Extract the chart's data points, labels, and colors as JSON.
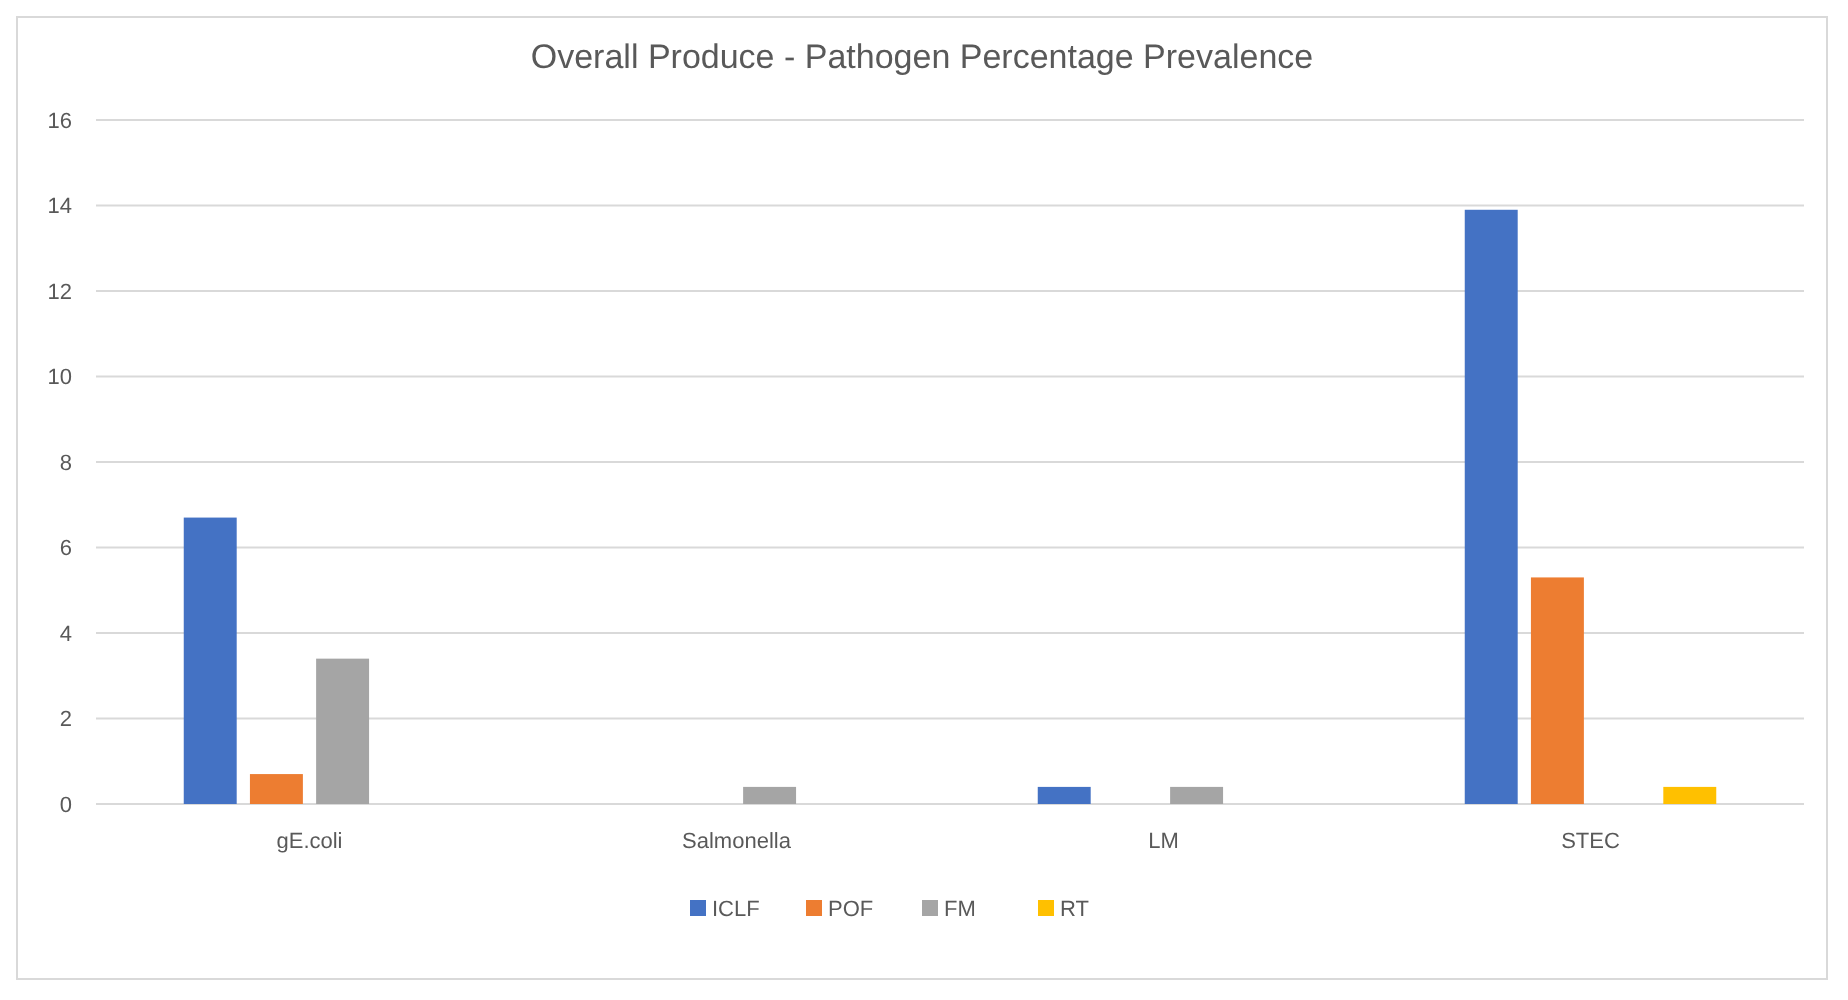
{
  "chart_data": {
    "type": "bar",
    "title": "Overall Produce - Pathogen Percentage Prevalence",
    "categories": [
      "gE.coli",
      "Salmonella",
      "LM",
      "STEC"
    ],
    "series": [
      {
        "name": "ICLF",
        "color": "#4472c4",
        "values": [
          6.7,
          null,
          0.4,
          13.9
        ]
      },
      {
        "name": "POF",
        "color": "#ed7d31",
        "values": [
          0.7,
          null,
          null,
          5.3
        ]
      },
      {
        "name": "FM",
        "color": "#a5a5a5",
        "values": [
          3.4,
          0.4,
          0.4,
          null
        ]
      },
      {
        "name": "RT",
        "color": "#ffc000",
        "values": [
          null,
          null,
          null,
          0.4
        ]
      }
    ],
    "ylim": [
      0,
      16
    ],
    "yticks": [
      0,
      2,
      4,
      6,
      8,
      10,
      12,
      14,
      16
    ],
    "grid": "y",
    "legend": "bottom"
  }
}
